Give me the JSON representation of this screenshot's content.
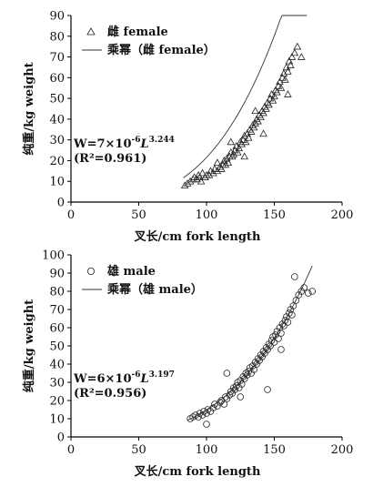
{
  "chart_data": [
    {
      "type": "scatter",
      "xlabel": "叉长/cm fork length",
      "ylabel": "纯重/kg weight",
      "xlim": [
        0,
        200
      ],
      "ylim": [
        0,
        90
      ],
      "xticks": [
        "0",
        "50",
        "100",
        "150",
        "200"
      ],
      "yticks": [
        "0",
        "10",
        "20",
        "30",
        "40",
        "50",
        "60",
        "70",
        "80",
        "90"
      ],
      "legend": {
        "position": "top-left",
        "scatter_label": "雌 female",
        "fit_label": "乘幂（雌 female）"
      },
      "equation": {
        "prefix": "W=7×10",
        "exp1": "-6",
        "mid": "L",
        "exp2": "3.244",
        "r2": "(R²=0.961)"
      },
      "marker": "triangle",
      "fit": {
        "a": 7e-06,
        "b": 3.244,
        "x_range": [
          83,
          174
        ]
      },
      "series": [
        {
          "name": "雌 female",
          "x": [
            84,
            86,
            88,
            90,
            91,
            93,
            94,
            95,
            96,
            97,
            99,
            100,
            102,
            103,
            105,
            106,
            108,
            110,
            111,
            112,
            113,
            114,
            115,
            116,
            117,
            118,
            119,
            120,
            121,
            122,
            123,
            124,
            125,
            126,
            127,
            128,
            129,
            130,
            131,
            132,
            133,
            134,
            135,
            136,
            137,
            138,
            139,
            140,
            141,
            142,
            143,
            144,
            145,
            146,
            147,
            148,
            149,
            150,
            151,
            152,
            153,
            154,
            155,
            156,
            157,
            158,
            159,
            160,
            161,
            162,
            163,
            165,
            167,
            170,
            118,
            128,
            136,
            142,
            160,
            108
          ],
          "y": [
            8,
            9,
            10,
            11,
            12,
            11,
            13,
            12,
            10,
            14,
            12,
            13,
            13,
            15,
            14,
            16,
            15,
            17,
            16,
            18,
            20,
            18,
            21,
            19,
            22,
            24,
            22,
            23,
            25,
            27,
            24,
            26,
            29,
            28,
            30,
            32,
            29,
            33,
            31,
            35,
            34,
            37,
            36,
            38,
            40,
            39,
            42,
            41,
            44,
            43,
            46,
            45,
            48,
            47,
            50,
            52,
            49,
            51,
            54,
            53,
            56,
            58,
            55,
            60,
            62,
            59,
            65,
            63,
            68,
            66,
            70,
            72,
            75,
            70,
            29,
            22,
            44,
            33,
            52,
            19
          ]
        }
      ]
    },
    {
      "type": "scatter",
      "xlabel": "叉长/cm fork length",
      "ylabel": "纯重/kg weight",
      "xlim": [
        0,
        200
      ],
      "ylim": [
        0,
        100
      ],
      "xticks": [
        "0",
        "50",
        "100",
        "150",
        "200"
      ],
      "yticks": [
        "0",
        "10",
        "20",
        "30",
        "40",
        "50",
        "60",
        "70",
        "80",
        "90",
        "100"
      ],
      "legend": {
        "position": "top-left",
        "scatter_label": "雄 male",
        "fit_label": "乘幂（雄 male）"
      },
      "equation": {
        "prefix": "W=6×10",
        "exp1": "-6",
        "mid": "L",
        "exp2": "3.197",
        "r2": "(R²=0.956)"
      },
      "marker": "circle",
      "fit": {
        "a": 6e-06,
        "b": 3.197,
        "x_range": [
          86,
          178
        ]
      },
      "series": [
        {
          "name": "雄 male",
          "x": [
            88,
            90,
            92,
            94,
            95,
            97,
            98,
            100,
            101,
            103,
            105,
            106,
            108,
            110,
            111,
            113,
            114,
            115,
            117,
            118,
            119,
            120,
            121,
            122,
            123,
            124,
            125,
            126,
            127,
            128,
            129,
            130,
            131,
            132,
            133,
            134,
            135,
            136,
            137,
            138,
            139,
            140,
            141,
            142,
            143,
            144,
            145,
            146,
            147,
            148,
            149,
            150,
            151,
            152,
            153,
            154,
            155,
            156,
            157,
            158,
            159,
            160,
            161,
            162,
            163,
            164,
            166,
            168,
            170,
            172,
            175,
            178,
            100,
            115,
            125,
            145,
            155,
            165
          ],
          "y": [
            10,
            11,
            12,
            11,
            13,
            12,
            14,
            13,
            15,
            14,
            16,
            18,
            17,
            19,
            20,
            18,
            22,
            21,
            23,
            25,
            24,
            27,
            26,
            28,
            30,
            27,
            31,
            29,
            33,
            32,
            35,
            34,
            36,
            38,
            35,
            39,
            37,
            41,
            40,
            43,
            42,
            45,
            44,
            47,
            46,
            49,
            48,
            51,
            50,
            53,
            55,
            52,
            56,
            58,
            54,
            60,
            57,
            62,
            61,
            64,
            66,
            63,
            68,
            70,
            67,
            72,
            75,
            78,
            80,
            82,
            79,
            80,
            7,
            35,
            22,
            26,
            48,
            88
          ]
        }
      ]
    }
  ]
}
